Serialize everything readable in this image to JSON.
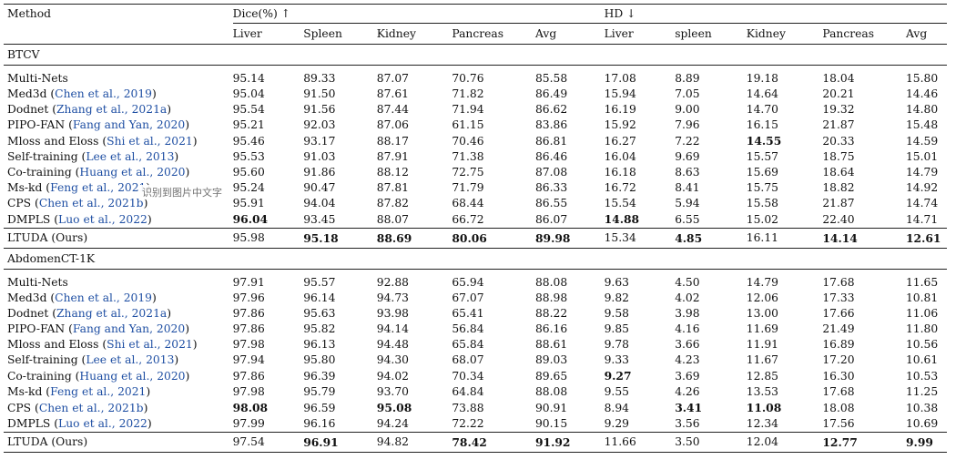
{
  "header": {
    "method": "Method",
    "dice": "Dice(%) ↑",
    "hd": "HD ↓",
    "dice_cols": [
      "Liver",
      "Spleen",
      "Kidney",
      "Pancreas",
      "Avg"
    ],
    "hd_cols": [
      "Liver",
      "spleen",
      "Kidney",
      "Pancreas",
      "Avg"
    ]
  },
  "sections": [
    {
      "name": "BTCV",
      "rows": [
        {
          "method": "Multi-Nets",
          "ref": "",
          "vals": [
            "95.14",
            "89.33",
            "87.07",
            "70.76",
            "85.58",
            "17.08",
            "8.89",
            "19.18",
            "18.04",
            "15.80"
          ],
          "bold": []
        },
        {
          "method": "Med3d",
          "ref": "Chen et al., 2019",
          "vals": [
            "95.04",
            "91.50",
            "87.61",
            "71.82",
            "86.49",
            "15.94",
            "7.05",
            "14.64",
            "20.21",
            "14.46"
          ],
          "bold": []
        },
        {
          "method": "Dodnet",
          "ref": "Zhang et al., 2021a",
          "vals": [
            "95.54",
            "91.56",
            "87.44",
            "71.94",
            "86.62",
            "16.19",
            "9.00",
            "14.70",
            "19.32",
            "14.80"
          ],
          "bold": []
        },
        {
          "method": "PIPO-FAN",
          "ref": "Fang and Yan, 2020",
          "vals": [
            "95.21",
            "92.03",
            "87.06",
            "61.15",
            "83.86",
            "15.92",
            "7.96",
            "16.15",
            "21.87",
            "15.48"
          ],
          "bold": []
        },
        {
          "method": "Mloss and Eloss",
          "ref": "Shi et al., 2021",
          "vals": [
            "95.46",
            "93.17",
            "88.17",
            "70.46",
            "86.81",
            "16.27",
            "7.22",
            "14.55",
            "20.33",
            "14.59"
          ],
          "bold": [
            7
          ]
        },
        {
          "method": "Self-training",
          "ref": "Lee et al., 2013",
          "vals": [
            "95.53",
            "91.03",
            "87.91",
            "71.38",
            "86.46",
            "16.04",
            "9.69",
            "15.57",
            "18.75",
            "15.01"
          ],
          "bold": []
        },
        {
          "method": "Co-training",
          "ref": "Huang et al., 2020",
          "vals": [
            "95.60",
            "91.86",
            "88.12",
            "72.75",
            "87.08",
            "16.18",
            "8.63",
            "15.69",
            "18.64",
            "14.79"
          ],
          "bold": []
        },
        {
          "method": "Ms-kd",
          "ref": "Feng et al., 2021",
          "vals": [
            "95.24",
            "90.47",
            "87.81",
            "71.79",
            "86.33",
            "16.72",
            "8.41",
            "15.75",
            "18.82",
            "14.92"
          ],
          "bold": []
        },
        {
          "method": "CPS",
          "ref": "Chen et al., 2021b",
          "vals": [
            "95.91",
            "94.04",
            "87.82",
            "68.44",
            "86.55",
            "15.54",
            "5.94",
            "15.58",
            "21.87",
            "14.74"
          ],
          "bold": []
        },
        {
          "method": "DMPLS",
          "ref": "Luo et al., 2022",
          "vals": [
            "96.04",
            "93.45",
            "88.07",
            "66.72",
            "86.07",
            "14.88",
            "6.55",
            "15.02",
            "22.40",
            "14.71"
          ],
          "bold": [
            0,
            5
          ]
        }
      ],
      "ours": {
        "method": "LTUDA (Ours)",
        "vals": [
          "95.98",
          "95.18",
          "88.69",
          "80.06",
          "89.98",
          "15.34",
          "4.85",
          "16.11",
          "14.14",
          "12.61"
        ],
        "bold": [
          1,
          2,
          3,
          4,
          6,
          8,
          9
        ]
      }
    },
    {
      "name": "AbdomenCT-1K",
      "rows": [
        {
          "method": "Multi-Nets",
          "ref": "",
          "vals": [
            "97.91",
            "95.57",
            "92.88",
            "65.94",
            "88.08",
            "9.63",
            "4.50",
            "14.79",
            "17.68",
            "11.65"
          ],
          "bold": []
        },
        {
          "method": "Med3d",
          "ref": "Chen et al., 2019",
          "vals": [
            "97.96",
            "96.14",
            "94.73",
            "67.07",
            "88.98",
            "9.82",
            "4.02",
            "12.06",
            "17.33",
            "10.81"
          ],
          "bold": []
        },
        {
          "method": "Dodnet",
          "ref": "Zhang et al., 2021a",
          "vals": [
            "97.86",
            "95.63",
            "93.98",
            "65.41",
            "88.22",
            "9.58",
            "3.98",
            "13.00",
            "17.66",
            "11.06"
          ],
          "bold": []
        },
        {
          "method": "PIPO-FAN",
          "ref": "Fang and Yan, 2020",
          "vals": [
            "97.86",
            "95.82",
            "94.14",
            "56.84",
            "86.16",
            "9.85",
            "4.16",
            "11.69",
            "21.49",
            "11.80"
          ],
          "bold": []
        },
        {
          "method": "Mloss and Eloss",
          "ref": "Shi et al., 2021",
          "vals": [
            "97.98",
            "96.13",
            "94.48",
            "65.84",
            "88.61",
            "9.78",
            "3.66",
            "11.91",
            "16.89",
            "10.56"
          ],
          "bold": []
        },
        {
          "method": "Self-training",
          "ref": "Lee et al., 2013",
          "vals": [
            "97.94",
            "95.80",
            "94.30",
            "68.07",
            "89.03",
            "9.33",
            "4.23",
            "11.67",
            "17.20",
            "10.61"
          ],
          "bold": []
        },
        {
          "method": "Co-training",
          "ref": "Huang et al., 2020",
          "vals": [
            "97.86",
            "96.39",
            "94.02",
            "70.34",
            "89.65",
            "9.27",
            "3.69",
            "12.85",
            "16.30",
            "10.53"
          ],
          "bold": [
            5
          ]
        },
        {
          "method": "Ms-kd",
          "ref": "Feng et al., 2021",
          "vals": [
            "97.98",
            "95.79",
            "93.70",
            "64.84",
            "88.08",
            "9.55",
            "4.26",
            "13.53",
            "17.68",
            "11.25"
          ],
          "bold": []
        },
        {
          "method": "CPS",
          "ref": "Chen et al., 2021b",
          "vals": [
            "98.08",
            "96.59",
            "95.08",
            "73.88",
            "90.91",
            "8.94",
            "3.41",
            "11.08",
            "18.08",
            "10.38"
          ],
          "bold": [
            0,
            2,
            6,
            7
          ]
        },
        {
          "method": "DMPLS",
          "ref": "Luo et al., 2022",
          "vals": [
            "97.99",
            "96.16",
            "94.24",
            "72.22",
            "90.15",
            "9.29",
            "3.56",
            "12.34",
            "17.56",
            "10.69"
          ],
          "bold": []
        }
      ],
      "ours": {
        "method": "LTUDA (Ours)",
        "vals": [
          "97.54",
          "96.91",
          "94.82",
          "78.42",
          "91.92",
          "11.66",
          "3.50",
          "12.04",
          "12.77",
          "9.99"
        ],
        "bold": [
          1,
          3,
          4,
          8,
          9
        ]
      }
    }
  ],
  "overlay_text": "识别到图片中文字"
}
